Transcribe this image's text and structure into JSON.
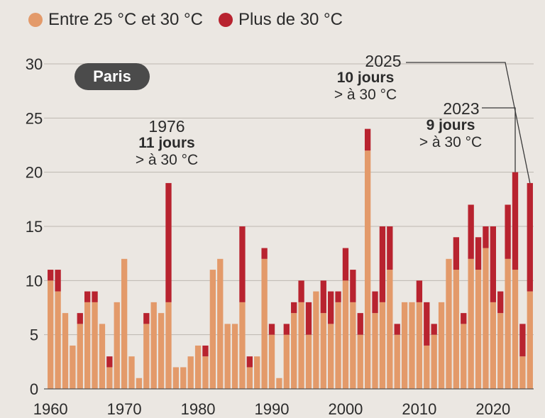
{
  "legend": {
    "items": [
      {
        "label": "Entre 25 °C et 30 °C",
        "color": "#e39a6a"
      },
      {
        "label": "Plus de 30 °C",
        "color": "#b8232f"
      }
    ]
  },
  "badge": {
    "label": "Paris"
  },
  "annotations": {
    "a1976": {
      "year": "1976",
      "days": "11 jours",
      "text": "> à 30 °C"
    },
    "a2025": {
      "year": "2025",
      "days": "10 jours",
      "text": "> à 30 °C"
    },
    "a2023": {
      "year": "2023",
      "days": "9 jours",
      "text": "> à 30 °C"
    }
  },
  "chart_data": {
    "type": "bar",
    "stacked": true,
    "x": [
      1960,
      1961,
      1962,
      1963,
      1964,
      1965,
      1966,
      1967,
      1968,
      1969,
      1970,
      1971,
      1972,
      1973,
      1974,
      1975,
      1976,
      1977,
      1978,
      1979,
      1980,
      1981,
      1982,
      1983,
      1984,
      1985,
      1986,
      1987,
      1988,
      1989,
      1990,
      1991,
      1992,
      1993,
      1994,
      1995,
      1996,
      1997,
      1998,
      1999,
      2000,
      2001,
      2002,
      2003,
      2004,
      2005,
      2006,
      2007,
      2008,
      2009,
      2010,
      2011,
      2012,
      2013,
      2014,
      2015,
      2016,
      2017,
      2018,
      2019,
      2020,
      2021,
      2022,
      2023,
      2024,
      2025
    ],
    "series": [
      {
        "name": "Entre 25 °C et 30 °C",
        "color": "#e39a6a",
        "values": [
          10,
          9,
          7,
          4,
          6,
          8,
          8,
          6,
          2,
          8,
          12,
          3,
          1,
          6,
          8,
          7,
          8,
          2,
          2,
          3,
          4,
          3,
          11,
          12,
          6,
          6,
          8,
          2,
          3,
          12,
          5,
          1,
          5,
          7,
          8,
          5,
          9,
          7,
          6,
          8,
          10,
          8,
          5,
          22,
          7,
          8,
          11,
          5,
          8,
          8,
          8,
          4,
          5,
          8,
          12,
          11,
          6,
          12,
          11,
          13,
          8,
          7,
          12,
          11,
          3,
          9
        ]
      },
      {
        "name": "Plus de 30 °C",
        "color": "#b8232f",
        "values": [
          1,
          2,
          0,
          0,
          1,
          1,
          1,
          0,
          1,
          0,
          0,
          0,
          0,
          1,
          0,
          0,
          11,
          0,
          0,
          0,
          0,
          1,
          0,
          0,
          0,
          0,
          7,
          1,
          0,
          1,
          1,
          0,
          1,
          1,
          2,
          3,
          0,
          3,
          3,
          1,
          3,
          3,
          2,
          2,
          2,
          7,
          4,
          1,
          0,
          0,
          2,
          4,
          1,
          0,
          0,
          3,
          1,
          5,
          3,
          2,
          7,
          2,
          5,
          9,
          3,
          10
        ]
      }
    ],
    "xticks": [
      "1960",
      "1970",
      "1980",
      "1990",
      "2000",
      "2010",
      "2020"
    ],
    "yticks": [
      "0",
      "5",
      "10",
      "15",
      "20",
      "25",
      "30"
    ],
    "ylim": [
      0,
      30
    ],
    "grid": true,
    "legend_position": "top-left"
  }
}
